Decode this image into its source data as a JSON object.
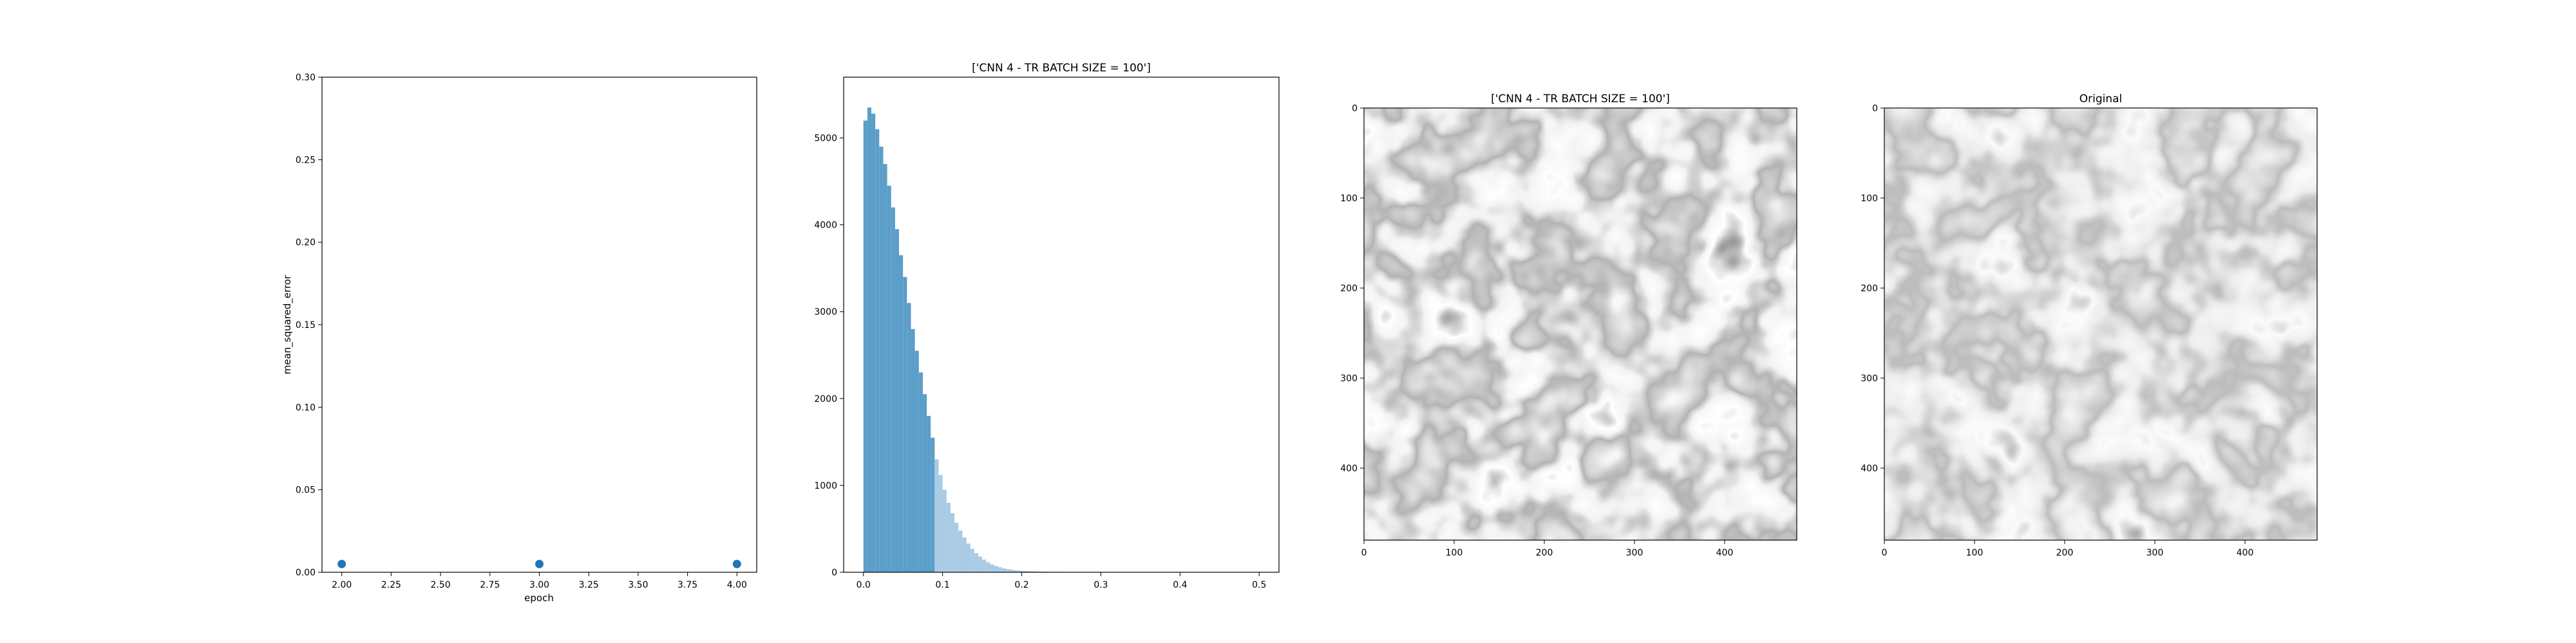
{
  "chart_data": [
    {
      "type": "scatter",
      "title": "",
      "xlabel": "epoch",
      "ylabel": "mean_squared_error",
      "x": [
        2.0,
        3.0,
        4.0
      ],
      "y": [
        0.005,
        0.005,
        0.005
      ],
      "xlim": [
        1.9,
        4.1
      ],
      "ylim": [
        0,
        0.3
      ],
      "xticks": [
        2.0,
        2.25,
        2.5,
        2.75,
        3.0,
        3.25,
        3.5,
        3.75,
        4.0
      ],
      "xtick_labels": [
        "2.00",
        "2.25",
        "2.50",
        "2.75",
        "3.00",
        "3.25",
        "3.50",
        "3.75",
        "4.00"
      ],
      "yticks": [
        0,
        0.05,
        0.1,
        0.15,
        0.2,
        0.25,
        0.3
      ],
      "ytick_labels": [
        "0.00",
        "0.05",
        "0.10",
        "0.15",
        "0.20",
        "0.25",
        "0.30"
      ],
      "color": "#1f77b4",
      "grid": false
    },
    {
      "type": "bar",
      "subtype": "histogram",
      "title": "['CNN 4 - TR BATCH SIZE = 100']",
      "xlabel": "",
      "ylabel": "",
      "xlim": [
        -0.025,
        0.525
      ],
      "ylim": [
        0,
        5700
      ],
      "xticks": [
        0,
        0.1,
        0.2,
        0.3,
        0.4,
        0.5
      ],
      "xtick_labels": [
        "0.0",
        "0.1",
        "0.2",
        "0.3",
        "0.4",
        "0.5"
      ],
      "yticks": [
        0,
        1000,
        2000,
        3000,
        4000,
        5000
      ],
      "ytick_labels": [
        "0",
        "1000",
        "2000",
        "3000",
        "4000",
        "5000"
      ],
      "threshold": 0.09,
      "color_below": "#5b9ec9",
      "color_above": "#a9cbe4",
      "bins": [
        [
          0.0,
          0.005,
          5200
        ],
        [
          0.005,
          0.01,
          5350
        ],
        [
          0.01,
          0.015,
          5280
        ],
        [
          0.015,
          0.02,
          5100
        ],
        [
          0.02,
          0.025,
          4900
        ],
        [
          0.025,
          0.03,
          4700
        ],
        [
          0.03,
          0.035,
          4450
        ],
        [
          0.035,
          0.04,
          4200
        ],
        [
          0.04,
          0.045,
          3950
        ],
        [
          0.045,
          0.05,
          3650
        ],
        [
          0.05,
          0.055,
          3400
        ],
        [
          0.055,
          0.06,
          3100
        ],
        [
          0.06,
          0.065,
          2800
        ],
        [
          0.065,
          0.07,
          2550
        ],
        [
          0.07,
          0.075,
          2300
        ],
        [
          0.075,
          0.08,
          2050
        ],
        [
          0.08,
          0.085,
          1800
        ],
        [
          0.085,
          0.09,
          1550
        ],
        [
          0.09,
          0.095,
          1300
        ],
        [
          0.095,
          0.1,
          1120
        ],
        [
          0.1,
          0.105,
          950
        ],
        [
          0.105,
          0.11,
          800
        ],
        [
          0.11,
          0.115,
          680
        ],
        [
          0.115,
          0.12,
          570
        ],
        [
          0.12,
          0.125,
          480
        ],
        [
          0.125,
          0.13,
          400
        ],
        [
          0.13,
          0.135,
          330
        ],
        [
          0.135,
          0.14,
          270
        ],
        [
          0.14,
          0.145,
          220
        ],
        [
          0.145,
          0.15,
          180
        ],
        [
          0.15,
          0.155,
          145
        ],
        [
          0.155,
          0.16,
          115
        ],
        [
          0.16,
          0.165,
          90
        ],
        [
          0.165,
          0.17,
          72
        ],
        [
          0.17,
          0.175,
          58
        ],
        [
          0.175,
          0.18,
          46
        ],
        [
          0.18,
          0.185,
          37
        ],
        [
          0.185,
          0.19,
          30
        ],
        [
          0.19,
          0.195,
          24
        ],
        [
          0.195,
          0.2,
          19
        ],
        [
          0.2,
          0.21,
          15
        ],
        [
          0.21,
          0.22,
          11
        ],
        [
          0.22,
          0.23,
          8
        ],
        [
          0.23,
          0.24,
          6
        ],
        [
          0.24,
          0.25,
          5
        ],
        [
          0.25,
          0.26,
          4
        ],
        [
          0.26,
          0.27,
          3
        ],
        [
          0.27,
          0.28,
          2
        ],
        [
          0.28,
          0.29,
          2
        ],
        [
          0.29,
          0.3,
          1
        ]
      ],
      "grid": false
    },
    {
      "type": "heatmap",
      "title": "['CNN 4 - TR BATCH SIZE = 100']",
      "colormap": "gray",
      "xlim": [
        0,
        480
      ],
      "ylim": [
        480,
        0
      ],
      "xticks": [
        0,
        100,
        200,
        300,
        400
      ],
      "yticks": [
        0,
        100,
        200,
        300,
        400
      ],
      "xtick_labels": [
        "0",
        "100",
        "200",
        "300",
        "400"
      ],
      "ytick_labels": [
        "0",
        "100",
        "200",
        "300",
        "400"
      ]
    },
    {
      "type": "heatmap",
      "title": "Original",
      "colormap": "gray",
      "xlim": [
        0,
        480
      ],
      "ylim": [
        480,
        0
      ],
      "xticks": [
        0,
        100,
        200,
        300,
        400
      ],
      "yticks": [
        0,
        100,
        200,
        300,
        400
      ],
      "xtick_labels": [
        "0",
        "100",
        "200",
        "300",
        "400"
      ],
      "ytick_labels": [
        "0",
        "100",
        "200",
        "300",
        "400"
      ]
    }
  ]
}
